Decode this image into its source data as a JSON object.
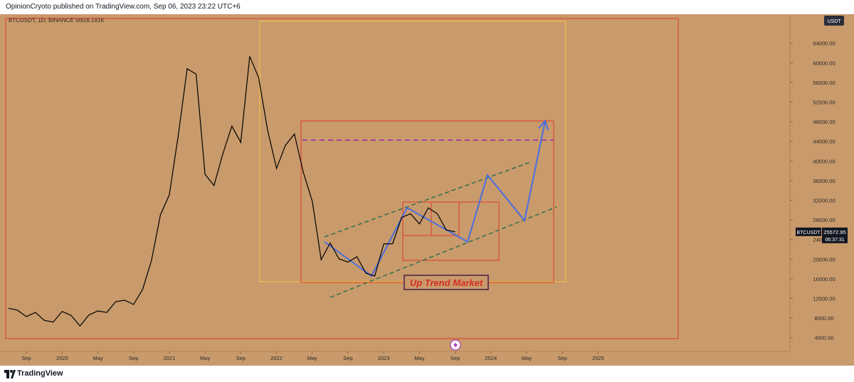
{
  "header": {
    "text": "OpinionCryoto published on TradingView.com, Sep 06, 2023 23:22 UTC+6"
  },
  "footer": {
    "brand": "TradingView"
  },
  "chart_data": {
    "type": "line",
    "legend_text": "BTCUSDT, 1D, BINANCE  Vol16.191K",
    "currency_button": "USDT",
    "annotation": "Up Trend Market",
    "last_price": {
      "symbol": "BTCUSDT",
      "value": 25572.95,
      "countdown": "06:37:31"
    },
    "x": [
      "2019-07",
      "2019-08",
      "2019-09",
      "2019-10",
      "2019-11",
      "2019-12",
      "2020-01",
      "2020-02",
      "2020-03",
      "2020-04",
      "2020-05",
      "2020-06",
      "2020-07",
      "2020-08",
      "2020-09",
      "2020-10",
      "2020-11",
      "2020-12",
      "2021-01",
      "2021-02",
      "2021-03",
      "2021-04",
      "2021-05",
      "2021-06",
      "2021-07",
      "2021-08",
      "2021-09",
      "2021-10",
      "2021-11",
      "2021-12",
      "2022-01",
      "2022-02",
      "2022-03",
      "2022-04",
      "2022-05",
      "2022-06",
      "2022-07",
      "2022-08",
      "2022-09",
      "2022-10",
      "2022-11",
      "2022-12",
      "2023-01",
      "2023-02",
      "2023-03",
      "2023-04",
      "2023-05",
      "2023-06",
      "2023-07",
      "2023-08",
      "2023-09"
    ],
    "series": [
      {
        "name": "BTCUSDT",
        "color": "#000000",
        "values": [
          10000,
          9600,
          8300,
          9150,
          7550,
          7200,
          9350,
          8550,
          6400,
          8650,
          9450,
          9150,
          11350,
          11650,
          10780,
          13800,
          19700,
          29000,
          33100,
          45200,
          58800,
          57700,
          37300,
          35000,
          41500,
          47100,
          43800,
          61300,
          57000,
          46300,
          38500,
          43200,
          45500,
          37700,
          31800,
          19900,
          23300,
          20050,
          19400,
          20500,
          17150,
          16550,
          23100,
          23150,
          28500,
          29250,
          27200,
          30450,
          29250,
          25950,
          25573
        ]
      }
    ],
    "xlim": [
      "2019-07",
      "2026-10"
    ],
    "xticks": [
      {
        "value": "2019-09",
        "label": "Sep"
      },
      {
        "value": "2020-01",
        "label": "2020"
      },
      {
        "value": "2020-05",
        "label": "May"
      },
      {
        "value": "2020-09",
        "label": "Sep"
      },
      {
        "value": "2021-01",
        "label": "2021"
      },
      {
        "value": "2021-05",
        "label": "May"
      },
      {
        "value": "2021-09",
        "label": "Sep"
      },
      {
        "value": "2022-01",
        "label": "2022"
      },
      {
        "value": "2022-05",
        "label": "May"
      },
      {
        "value": "2022-09",
        "label": "Sep"
      },
      {
        "value": "2023-01",
        "label": "2023"
      },
      {
        "value": "2023-05",
        "label": "May"
      },
      {
        "value": "2023-09",
        "label": "Sep"
      },
      {
        "value": "2024-01",
        "label": "2024"
      },
      {
        "value": "2024-05",
        "label": "May"
      },
      {
        "value": "2024-09",
        "label": "Sep"
      },
      {
        "value": "2025-01",
        "label": "2025"
      }
    ],
    "ylim": [
      1500,
      69900
    ],
    "yticks": [
      {
        "value": 4000,
        "label": "4000.00"
      },
      {
        "value": 8000,
        "label": "8000.00"
      },
      {
        "value": 12000,
        "label": "12000.00"
      },
      {
        "value": 16000,
        "label": "16000.00"
      },
      {
        "value": 20000,
        "label": "20000.00"
      },
      {
        "value": 24000,
        "label": "24000.00"
      },
      {
        "value": 28000,
        "label": "28000.00"
      },
      {
        "value": 32000,
        "label": "32000.00"
      },
      {
        "value": 36000,
        "label": "36000.00"
      },
      {
        "value": 40000,
        "label": "40000.00"
      },
      {
        "value": 44000,
        "label": "44000.00"
      },
      {
        "value": 48000,
        "label": "48000.00"
      },
      {
        "value": 52000,
        "label": "52000.00"
      },
      {
        "value": 56000,
        "label": "56000.00"
      },
      {
        "value": 60000,
        "label": "60000.00"
      },
      {
        "value": 64000,
        "label": "64000.00"
      }
    ]
  }
}
